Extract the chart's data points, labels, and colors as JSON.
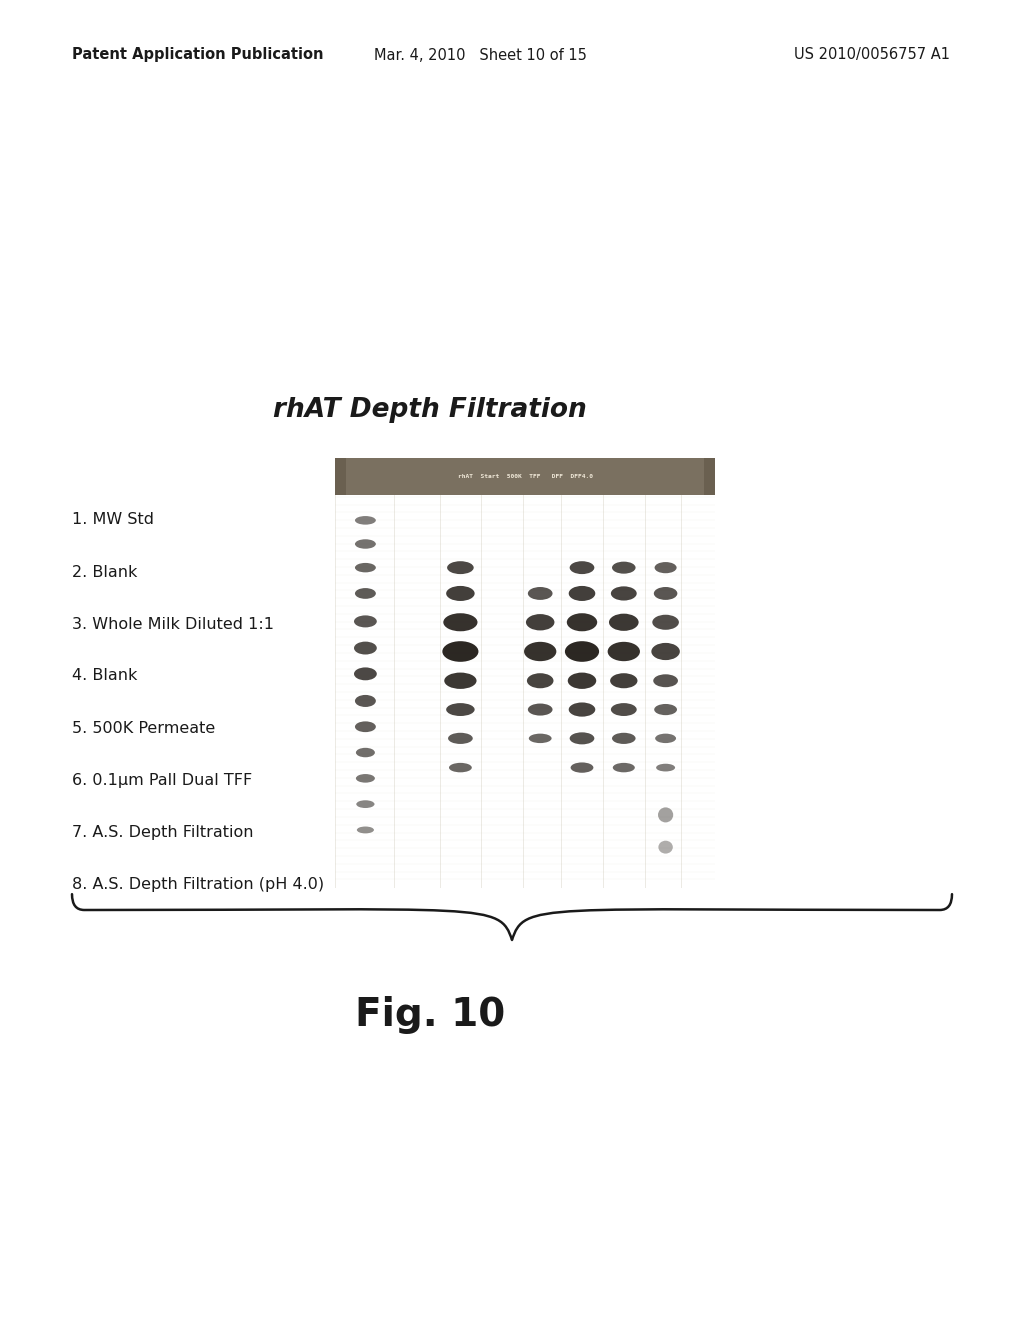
{
  "page_width": 10.24,
  "page_height": 13.2,
  "dpi": 100,
  "background_color": "#ffffff",
  "header_left": "Patent Application Publication",
  "header_center": "Mar. 4, 2010   Sheet 10 of 15",
  "header_right": "US 2010/0056757 A1",
  "header_fontsize": 10.5,
  "title_text": "rhAT Depth Filtration",
  "title_fontsize": 19,
  "legend_items": [
    "1. MW Std",
    "2. Blank",
    "3. Whole Milk Diluted 1:1",
    "4. Blank",
    "5. 500K Permeate",
    "6. 0.1μm Pall Dual TFF",
    "7. A.S. Depth Filtration",
    "8. A.S. Depth Filtration (pH 4.0)"
  ],
  "legend_fontsize": 11.5,
  "fig_label": "Fig. 10",
  "fig_label_fontsize": 28
}
